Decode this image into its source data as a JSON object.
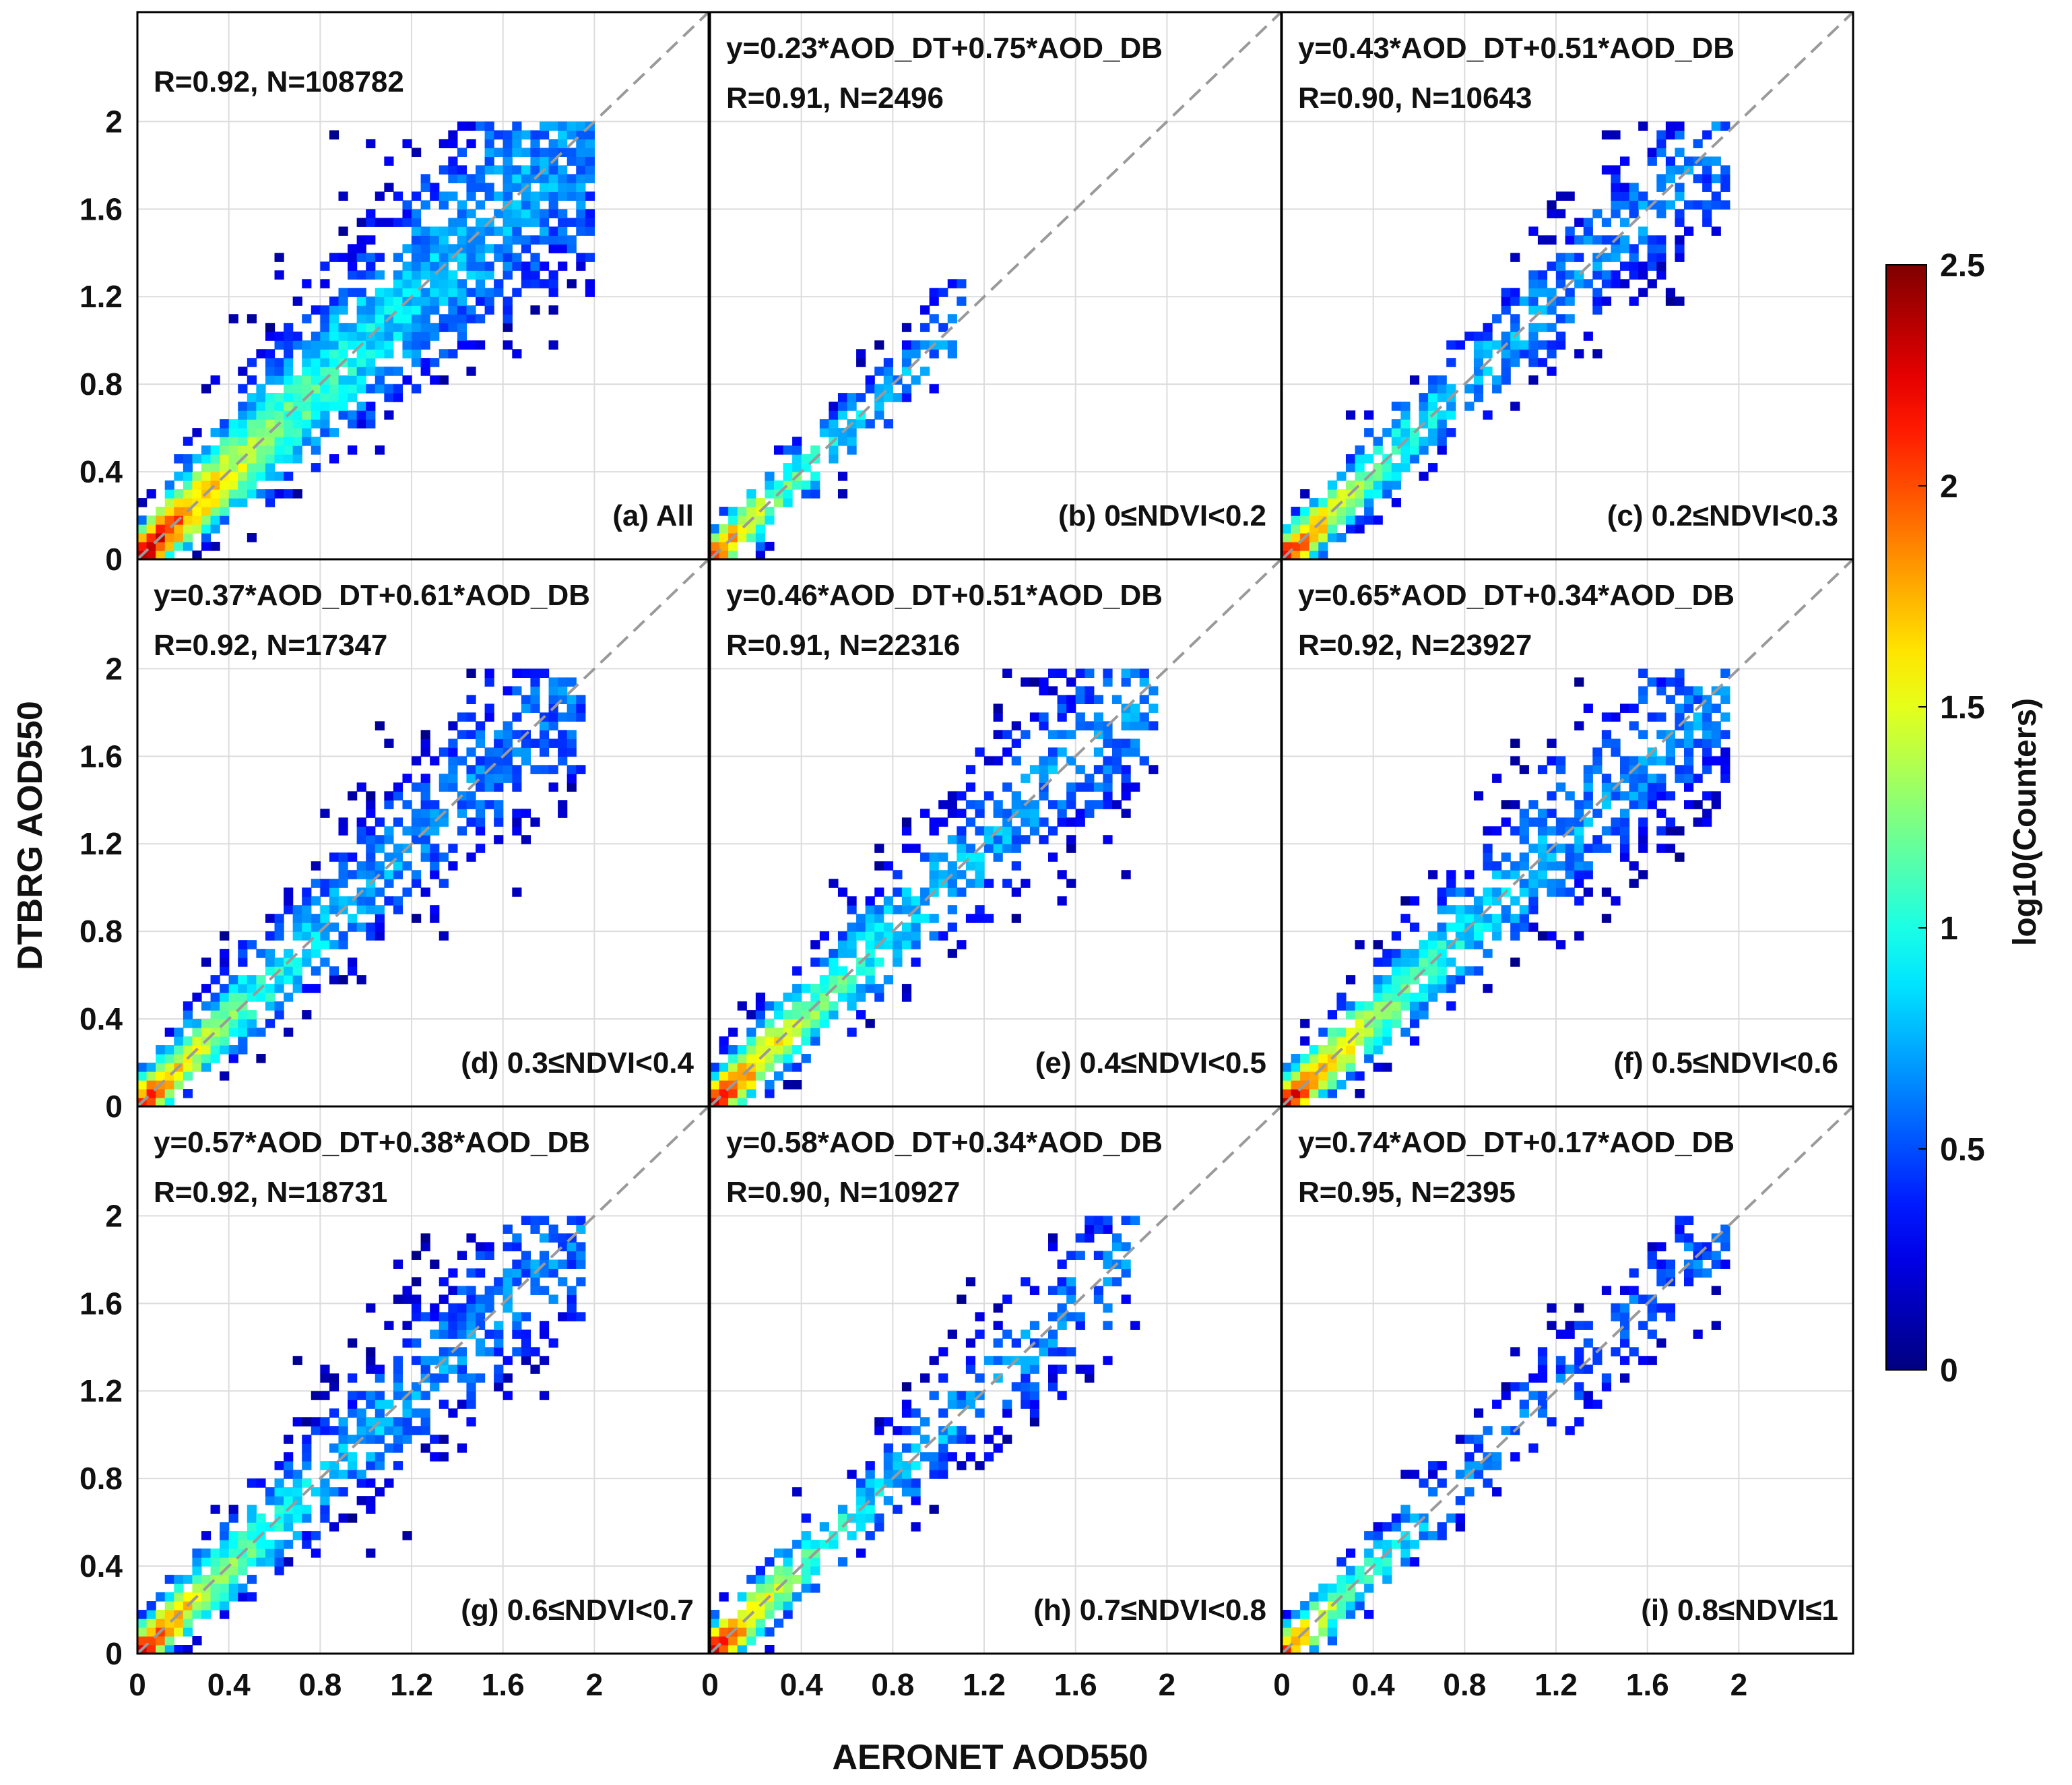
{
  "chart_data": {
    "type": "heatmap",
    "figure_type": "density scatter grid",
    "xlabel": "AERONET AOD550",
    "ylabel": "DTBRG AOD550",
    "xlim": [
      0,
      2.5
    ],
    "ylim": [
      0,
      2.5
    ],
    "xticks": [
      "0",
      "0.4",
      "0.8",
      "1.2",
      "1.6",
      "2"
    ],
    "yticks": [
      "0",
      "0.4",
      "0.8",
      "1.2",
      "1.6",
      "2"
    ],
    "reference_line": "1:1 dashed",
    "grid": true,
    "colorbar": {
      "label": "log10(Counters)",
      "range": [
        0,
        2.5
      ],
      "ticks": [
        "0",
        "0.5",
        "1",
        "1.5",
        "2",
        "2.5"
      ]
    },
    "panels": [
      {
        "id": "a",
        "label": "(a) All",
        "equation": "",
        "stats": "R=0.92, N=108782",
        "R": 0.92,
        "N": 108782,
        "spread": 0.9,
        "peak": 2.5,
        "xmax": 2.0
      },
      {
        "id": "b",
        "label": "(b) 0≤NDVI<0.2",
        "equation": "y=0.23*AOD_DT+0.75*AOD_DB",
        "stats": "R=0.91, N=2496",
        "R": 0.91,
        "N": 2496,
        "spread": 0.3,
        "peak": 2.2,
        "xmax": 1.1
      },
      {
        "id": "c",
        "label": "(c) 0.2≤NDVI<0.3",
        "equation": "y=0.43*AOD_DT+0.51*AOD_DB",
        "stats": "R=0.90, N=10643",
        "R": 0.9,
        "N": 10643,
        "spread": 0.45,
        "peak": 2.3,
        "xmax": 1.95
      },
      {
        "id": "d",
        "label": "(d) 0.3≤NDVI<0.4",
        "equation": "y=0.37*AOD_DT+0.61*AOD_DB",
        "stats": "R=0.92, N=17347",
        "R": 0.92,
        "N": 17347,
        "spread": 0.6,
        "peak": 2.2,
        "xmax": 1.95
      },
      {
        "id": "e",
        "label": "(e) 0.4≤NDVI<0.5",
        "equation": "y=0.46*AOD_DT+0.51*AOD_DB",
        "stats": "R=0.91, N=22316",
        "R": 0.91,
        "N": 22316,
        "spread": 0.6,
        "peak": 2.4,
        "xmax": 1.95
      },
      {
        "id": "f",
        "label": "(f) 0.5≤NDVI<0.6",
        "equation": "y=0.65*AOD_DT+0.34*AOD_DB",
        "stats": "R=0.92, N=23927",
        "R": 0.92,
        "N": 23927,
        "spread": 0.6,
        "peak": 2.4,
        "xmax": 1.95
      },
      {
        "id": "g",
        "label": "(g) 0.6≤NDVI<0.7",
        "equation": "y=0.57*AOD_DT+0.38*AOD_DB",
        "stats": "R=0.92, N=18731",
        "R": 0.92,
        "N": 18731,
        "spread": 0.55,
        "peak": 2.3,
        "xmax": 1.95
      },
      {
        "id": "h",
        "label": "(h) 0.7≤NDVI<0.8",
        "equation": "y=0.58*AOD_DT+0.34*AOD_DB",
        "stats": "R=0.90, N=10927",
        "R": 0.9,
        "N": 10927,
        "spread": 0.45,
        "peak": 2.3,
        "xmax": 1.9
      },
      {
        "id": "i",
        "label": "(i) 0.8≤NDVI≤1",
        "equation": "y=0.74*AOD_DT+0.17*AOD_DB",
        "stats": "R=0.95, N=2395",
        "R": 0.95,
        "N": 2395,
        "spread": 0.3,
        "peak": 2.1,
        "xmax": 1.95
      }
    ]
  }
}
